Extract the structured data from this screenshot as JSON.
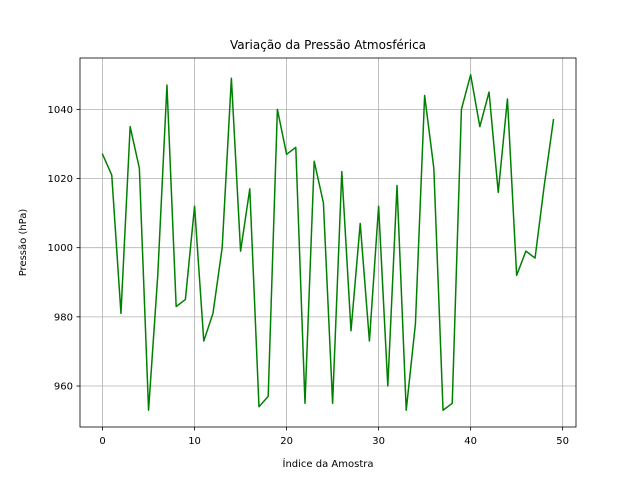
{
  "chart_data": {
    "type": "line",
    "title": "Variação da Pressão Atmosférica",
    "xlabel": "Índice da Amostra",
    "ylabel": "Pressão (hPa)",
    "xlim": [
      -2.45,
      51.45
    ],
    "ylim": [
      948.15,
      1054.85
    ],
    "xticks": [
      0,
      10,
      20,
      30,
      40,
      50
    ],
    "yticks": [
      960,
      980,
      1000,
      1020,
      1040
    ],
    "grid": true,
    "series": [
      {
        "color": "#008000",
        "x": [
          0,
          1,
          2,
          3,
          4,
          5,
          6,
          7,
          8,
          9,
          10,
          11,
          12,
          13,
          14,
          15,
          16,
          17,
          18,
          19,
          20,
          21,
          22,
          23,
          24,
          25,
          26,
          27,
          28,
          29,
          30,
          31,
          32,
          33,
          34,
          35,
          36,
          37,
          38,
          39,
          40,
          41,
          42,
          43,
          44,
          45,
          46,
          47,
          48,
          49
        ],
        "values": [
          1027,
          1021,
          981,
          1035,
          1023,
          953,
          992,
          1047,
          983,
          985,
          1012,
          973,
          981,
          1000,
          1049,
          999,
          1017,
          954,
          957,
          1040,
          1027,
          1029,
          955,
          1025,
          1013,
          955,
          1022,
          976,
          1007,
          973,
          1012,
          960,
          1018,
          953,
          978,
          1044,
          1023,
          953,
          955,
          1040,
          1050,
          1035,
          1045,
          1016,
          1043,
          992,
          999,
          997,
          1018,
          1037
        ]
      }
    ]
  }
}
